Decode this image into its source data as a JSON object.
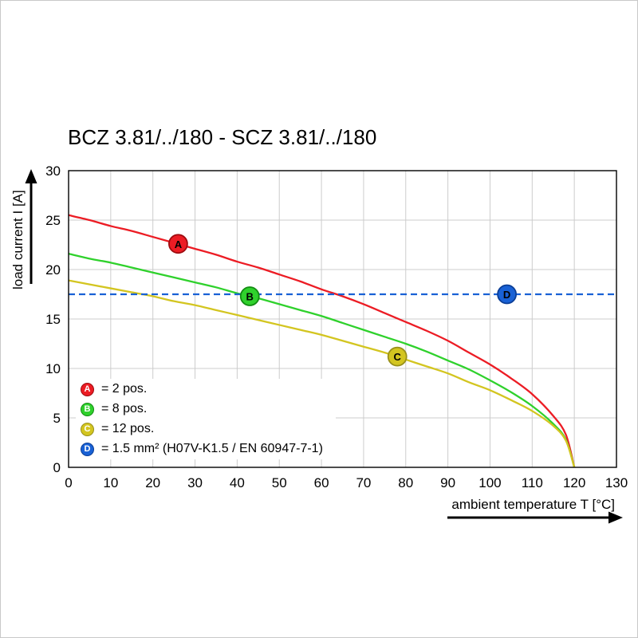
{
  "title": "BCZ 3.81/../180 - SCZ 3.81/../180",
  "chart_data": {
    "type": "line",
    "title": "BCZ 3.81/../180 - SCZ 3.81/../180",
    "xlabel": "ambient temperature T [°C]",
    "ylabel": "load current I [A]",
    "xlim": [
      0,
      130
    ],
    "ylim": [
      0,
      30
    ],
    "x_ticks": [
      0,
      10,
      20,
      30,
      40,
      50,
      60,
      70,
      80,
      90,
      100,
      110,
      120,
      130
    ],
    "y_ticks": [
      0,
      5,
      10,
      15,
      20,
      25,
      30
    ],
    "grid": true,
    "grid_color": "#cccccc",
    "legend_position": "bottom-left",
    "series": [
      {
        "id": "A",
        "legend_label": "= 2 pos.",
        "color": "#ec1c24",
        "marker_stroke": "#9e0b0f",
        "line_style": "solid",
        "marker_at": [
          26,
          22.6
        ],
        "points": [
          [
            0,
            25.5
          ],
          [
            5,
            25.0
          ],
          [
            10,
            24.4
          ],
          [
            15,
            23.9
          ],
          [
            20,
            23.3
          ],
          [
            25,
            22.7
          ],
          [
            30,
            22.1
          ],
          [
            35,
            21.5
          ],
          [
            40,
            20.8
          ],
          [
            45,
            20.2
          ],
          [
            50,
            19.5
          ],
          [
            55,
            18.8
          ],
          [
            60,
            18.0
          ],
          [
            65,
            17.3
          ],
          [
            70,
            16.5
          ],
          [
            75,
            15.6
          ],
          [
            80,
            14.7
          ],
          [
            85,
            13.8
          ],
          [
            90,
            12.8
          ],
          [
            95,
            11.6
          ],
          [
            100,
            10.4
          ],
          [
            105,
            9.0
          ],
          [
            110,
            7.4
          ],
          [
            115,
            5.2
          ],
          [
            118,
            3.3
          ],
          [
            120,
            0
          ]
        ]
      },
      {
        "id": "B",
        "legend_label": "= 8 pos.",
        "color": "#2fd12c",
        "marker_stroke": "#128c12",
        "line_style": "solid",
        "marker_at": [
          43,
          17.3
        ],
        "points": [
          [
            0,
            21.6
          ],
          [
            5,
            21.1
          ],
          [
            10,
            20.7
          ],
          [
            15,
            20.2
          ],
          [
            20,
            19.7
          ],
          [
            25,
            19.2
          ],
          [
            30,
            18.7
          ],
          [
            35,
            18.2
          ],
          [
            40,
            17.6
          ],
          [
            45,
            17.1
          ],
          [
            50,
            16.5
          ],
          [
            55,
            15.9
          ],
          [
            60,
            15.3
          ],
          [
            65,
            14.6
          ],
          [
            70,
            13.9
          ],
          [
            75,
            13.2
          ],
          [
            80,
            12.5
          ],
          [
            85,
            11.7
          ],
          [
            90,
            10.8
          ],
          [
            95,
            9.9
          ],
          [
            100,
            8.8
          ],
          [
            105,
            7.6
          ],
          [
            110,
            6.2
          ],
          [
            115,
            4.4
          ],
          [
            118,
            2.8
          ],
          [
            120,
            0
          ]
        ]
      },
      {
        "id": "C",
        "legend_label": "= 12 pos.",
        "color": "#d3c520",
        "marker_stroke": "#98901a",
        "line_style": "solid",
        "marker_at": [
          78,
          11.2
        ],
        "points": [
          [
            0,
            18.9
          ],
          [
            5,
            18.5
          ],
          [
            10,
            18.1
          ],
          [
            15,
            17.7
          ],
          [
            20,
            17.3
          ],
          [
            25,
            16.8
          ],
          [
            30,
            16.4
          ],
          [
            35,
            15.9
          ],
          [
            40,
            15.4
          ],
          [
            45,
            14.9
          ],
          [
            50,
            14.4
          ],
          [
            55,
            13.9
          ],
          [
            60,
            13.4
          ],
          [
            65,
            12.8
          ],
          [
            70,
            12.2
          ],
          [
            75,
            11.6
          ],
          [
            80,
            10.9
          ],
          [
            85,
            10.2
          ],
          [
            90,
            9.5
          ],
          [
            95,
            8.6
          ],
          [
            100,
            7.8
          ],
          [
            105,
            6.8
          ],
          [
            110,
            5.7
          ],
          [
            115,
            4.2
          ],
          [
            118,
            2.7
          ],
          [
            120,
            0
          ]
        ]
      },
      {
        "id": "D",
        "legend_label": "= 1.5 mm² (H07V-K1.5 / EN 60947-7-1)",
        "color": "#1961d5",
        "marker_stroke": "#0b3e96",
        "line_style": "dashed",
        "marker_at": [
          104,
          17.5
        ],
        "points": [
          [
            0,
            17.5
          ],
          [
            130,
            17.5
          ]
        ]
      }
    ]
  }
}
